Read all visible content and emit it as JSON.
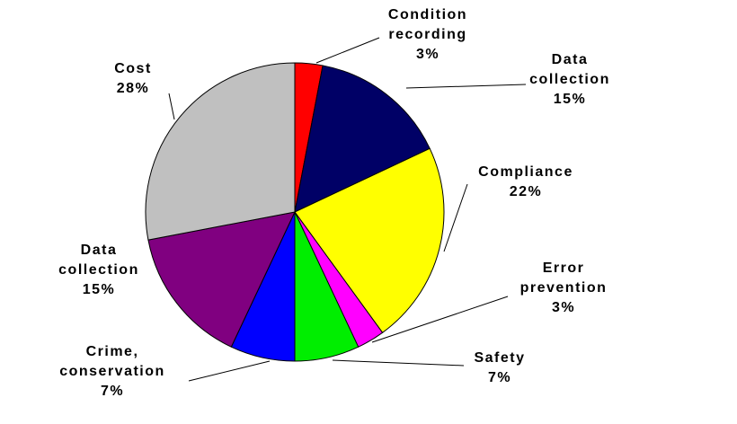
{
  "chart_data": {
    "type": "pie",
    "categories": [
      "Condition recording",
      "Data collection",
      "Compliance",
      "Error prevention",
      "Safety",
      "Crime, conservation",
      "Data collection",
      "Cost"
    ],
    "values": [
      3,
      15,
      22,
      3,
      7,
      7,
      15,
      28
    ],
    "value_labels": [
      "3%",
      "15%",
      "22%",
      "3%",
      "7%",
      "7%",
      "15%",
      "28%"
    ],
    "colors": [
      "#ff0000",
      "#000066",
      "#ffff00",
      "#ff00ff",
      "#00ee00",
      "#0000ff",
      "#800080",
      "#c0c0c0"
    ]
  }
}
